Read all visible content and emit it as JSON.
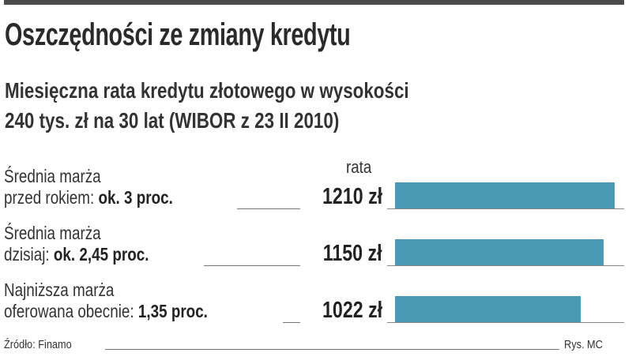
{
  "title": "Oszczędności ze zmiany kredytu",
  "subtitle": [
    "Miesięczna rata kredytu złotowego w wysokości",
    "240 tys. zł na 30 lat (WIBOR z 23 II 2010)"
  ],
  "chart_data": {
    "type": "bar",
    "orientation": "horizontal",
    "value_header": "rata",
    "categories": [
      {
        "line1": "Średnia marża",
        "line2_prefix": "przed rokiem: ",
        "line2_bold": "ok. 3 proc."
      },
      {
        "line1": "Średnia marża",
        "line2_prefix": "dzisiaj: ",
        "line2_bold": "ok. 2,45 proc."
      },
      {
        "line1": "Najniższa marża",
        "line2_prefix": "oferowana obecnie: ",
        "line2_bold": "1,35 proc."
      }
    ],
    "values": [
      1210,
      1150,
      1022
    ],
    "value_labels": [
      "1210 zł",
      "1150 zł",
      "1022 zł"
    ],
    "unit": "zł",
    "xlim": [
      0,
      1210
    ],
    "grid": false,
    "bar_color": "#4a9ab5"
  },
  "footer": {
    "source": "Źródło: Finamo",
    "credit": "Rys. MC"
  }
}
